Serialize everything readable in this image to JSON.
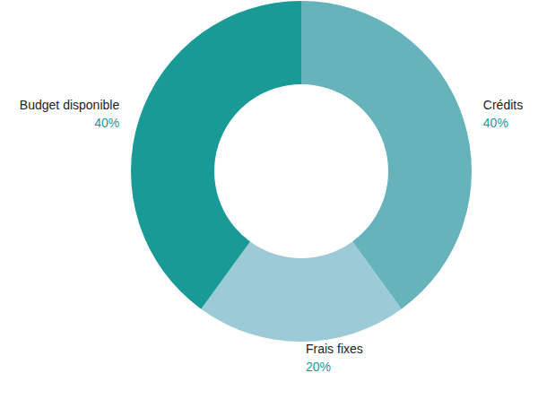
{
  "chart_data": {
    "type": "pie",
    "categories": [
      "Crédits",
      "Frais fixes",
      "Budget disponible"
    ],
    "values": [
      40,
      20,
      40
    ],
    "value_labels": [
      "40%",
      "20%",
      "40%"
    ],
    "colors": [
      "#66b3bb",
      "#9ccad6",
      "#1a9a96"
    ],
    "data_labels": true
  }
}
